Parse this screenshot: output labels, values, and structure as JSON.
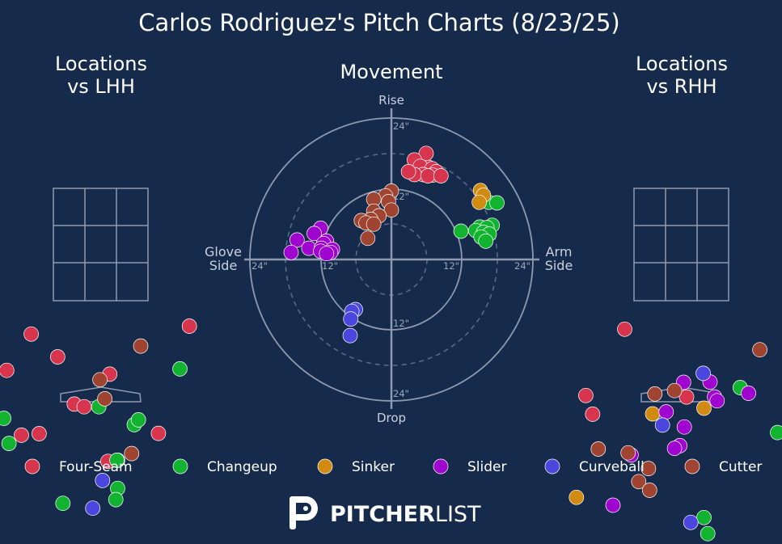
{
  "chart_data": {
    "title": "Carlos Rodriguez's Pitch Charts (8/23/25)",
    "legend": {
      "placement": "bottom",
      "entries": [
        {
          "key": "four_seam",
          "label": "Four-Seam",
          "color": "#d7344e"
        },
        {
          "key": "changeup",
          "label": "Changeup",
          "color": "#12b330"
        },
        {
          "key": "sinker",
          "label": "Sinker",
          "color": "#d18a12"
        },
        {
          "key": "slider",
          "label": "Slider",
          "color": "#a004cf"
        },
        {
          "key": "curveball",
          "label": "Curveball",
          "color": "#4a46de"
        },
        {
          "key": "cutter",
          "label": "Cutter",
          "color": "#9e4430"
        }
      ]
    },
    "charts": [
      {
        "type": "scatter",
        "title_line1": "Locations",
        "title_line2": "vs LHH",
        "points": [
          {
            "pitch": "four_seam",
            "x": -1.84,
            "y": 4.03
          },
          {
            "pitch": "four_seam",
            "x": 2.35,
            "y": 4.24
          },
          {
            "pitch": "four_seam",
            "x": -1.14,
            "y": 3.42
          },
          {
            "pitch": "four_seam",
            "x": -2.49,
            "y": 3.06
          },
          {
            "pitch": "four_seam",
            "x": 0.24,
            "y": 2.96
          },
          {
            "pitch": "four_seam",
            "x": -0.7,
            "y": 2.16
          },
          {
            "pitch": "four_seam",
            "x": -0.44,
            "y": 2.09
          },
          {
            "pitch": "four_seam",
            "x": -2.1,
            "y": 1.33
          },
          {
            "pitch": "four_seam",
            "x": -1.63,
            "y": 1.37
          },
          {
            "pitch": "four_seam",
            "x": 1.53,
            "y": 1.38
          },
          {
            "pitch": "four_seam",
            "x": 0.19,
            "y": 0.63
          },
          {
            "pitch": "four_seam",
            "x": 0.45,
            "y": 0.66
          },
          {
            "pitch": "changeup",
            "x": 2.1,
            "y": 3.1
          },
          {
            "pitch": "changeup",
            "x": -0.05,
            "y": 2.09
          },
          {
            "pitch": "changeup",
            "x": -2.57,
            "y": 1.78
          },
          {
            "pitch": "changeup",
            "x": 0.89,
            "y": 1.61
          },
          {
            "pitch": "changeup",
            "x": 1.0,
            "y": 1.74
          },
          {
            "pitch": "changeup",
            "x": -2.43,
            "y": 1.11
          },
          {
            "pitch": "changeup",
            "x": 0.43,
            "y": 0.66
          },
          {
            "pitch": "changeup",
            "x": 0.45,
            "y": -0.09
          },
          {
            "pitch": "changeup",
            "x": -1.0,
            "y": -0.49
          },
          {
            "pitch": "changeup",
            "x": 0.4,
            "y": -0.39
          },
          {
            "pitch": "curveball",
            "x": 0.05,
            "y": 0.12
          },
          {
            "pitch": "curveball",
            "x": -0.21,
            "y": -0.62
          },
          {
            "pitch": "cutter",
            "x": 1.06,
            "y": 3.71
          },
          {
            "pitch": "cutter",
            "x": -0.02,
            "y": 2.81
          },
          {
            "pitch": "cutter",
            "x": 0.11,
            "y": 2.3
          },
          {
            "pitch": "cutter",
            "x": 0.82,
            "y": 0.84
          },
          {
            "pitch": "cutter",
            "x": -3.18,
            "y": -0.47
          }
        ]
      },
      {
        "type": "scatter",
        "title": "Movement",
        "axis_top": "Rise",
        "axis_bottom": "Drop",
        "axis_left_line1": "Glove",
        "axis_left_line2": "Side",
        "axis_right_line1": "Arm",
        "axis_right_line2": "Side",
        "ring_labels": [
          "12\"",
          "24\""
        ],
        "x_range": [
          -24,
          24
        ],
        "y_range": [
          -24,
          24
        ],
        "points": [
          {
            "pitch": "four_seam",
            "x": 5.9,
            "y": 18.0
          },
          {
            "pitch": "four_seam",
            "x": 3.9,
            "y": 16.9
          },
          {
            "pitch": "four_seam",
            "x": 6.4,
            "y": 15.6
          },
          {
            "pitch": "four_seam",
            "x": 4.9,
            "y": 15.8
          },
          {
            "pitch": "four_seam",
            "x": 6.9,
            "y": 15.4
          },
          {
            "pitch": "four_seam",
            "x": 7.6,
            "y": 14.9
          },
          {
            "pitch": "four_seam",
            "x": 5.4,
            "y": 14.4
          },
          {
            "pitch": "four_seam",
            "x": 7.0,
            "y": 14.3
          },
          {
            "pitch": "four_seam",
            "x": 3.9,
            "y": 14.4
          },
          {
            "pitch": "four_seam",
            "x": 6.2,
            "y": 14.2
          },
          {
            "pitch": "four_seam",
            "x": 8.4,
            "y": 14.2
          },
          {
            "pitch": "four_seam",
            "x": 2.9,
            "y": 14.9
          },
          {
            "pitch": "changeup",
            "x": 16.5,
            "y": 9.7
          },
          {
            "pitch": "changeup",
            "x": 17.9,
            "y": 9.6
          },
          {
            "pitch": "changeup",
            "x": 15.0,
            "y": 5.5
          },
          {
            "pitch": "changeup",
            "x": 17.1,
            "y": 5.8
          },
          {
            "pitch": "changeup",
            "x": 16.2,
            "y": 5.4
          },
          {
            "pitch": "changeup",
            "x": 14.3,
            "y": 4.9
          },
          {
            "pitch": "changeup",
            "x": 15.6,
            "y": 4.6
          },
          {
            "pitch": "changeup",
            "x": 16.6,
            "y": 4.3
          },
          {
            "pitch": "changeup",
            "x": 11.8,
            "y": 4.8
          },
          {
            "pitch": "changeup",
            "x": 15.2,
            "y": 3.8
          },
          {
            "pitch": "changeup",
            "x": 16.0,
            "y": 3.1
          },
          {
            "pitch": "sinker",
            "x": 15.1,
            "y": 11.7
          },
          {
            "pitch": "sinker",
            "x": 15.6,
            "y": 10.9
          },
          {
            "pitch": "sinker",
            "x": 14.9,
            "y": 9.7
          },
          {
            "pitch": "slider",
            "x": -12.0,
            "y": 5.3
          },
          {
            "pitch": "slider",
            "x": -13.1,
            "y": 4.4
          },
          {
            "pitch": "slider",
            "x": -16.0,
            "y": 3.3
          },
          {
            "pitch": "slider",
            "x": -11.0,
            "y": 3.1
          },
          {
            "pitch": "slider",
            "x": -11.5,
            "y": 2.7
          },
          {
            "pitch": "slider",
            "x": -14.0,
            "y": 1.9
          },
          {
            "pitch": "slider",
            "x": -11.9,
            "y": 1.9
          },
          {
            "pitch": "slider",
            "x": -10.0,
            "y": 1.7
          },
          {
            "pitch": "slider",
            "x": -12.0,
            "y": 1.4
          },
          {
            "pitch": "slider",
            "x": -10.3,
            "y": 1.2
          },
          {
            "pitch": "slider",
            "x": -17.0,
            "y": 1.2
          },
          {
            "pitch": "slider",
            "x": -11.0,
            "y": 1.0
          },
          {
            "pitch": "curveball",
            "x": -6.1,
            "y": -8.5
          },
          {
            "pitch": "curveball",
            "x": -6.7,
            "y": -8.8
          },
          {
            "pitch": "curveball",
            "x": -6.9,
            "y": -10.1
          },
          {
            "pitch": "curveball",
            "x": -7.0,
            "y": -12.9
          },
          {
            "pitch": "cutter",
            "x": 0.0,
            "y": 11.6
          },
          {
            "pitch": "cutter",
            "x": -1.0,
            "y": 10.8
          },
          {
            "pitch": "cutter",
            "x": -3.0,
            "y": 10.2
          },
          {
            "pitch": "cutter",
            "x": -0.5,
            "y": 9.8
          },
          {
            "pitch": "cutter",
            "x": -3.0,
            "y": 8.2
          },
          {
            "pitch": "cutter",
            "x": 0.0,
            "y": 8.4
          },
          {
            "pitch": "cutter",
            "x": -2.1,
            "y": 7.4
          },
          {
            "pitch": "cutter",
            "x": -3.5,
            "y": 6.8
          },
          {
            "pitch": "cutter",
            "x": -5.1,
            "y": 6.6
          },
          {
            "pitch": "cutter",
            "x": -4.3,
            "y": 6.2
          },
          {
            "pitch": "cutter",
            "x": -3.0,
            "y": 6.0
          },
          {
            "pitch": "cutter",
            "x": -4.0,
            "y": 3.6
          }
        ]
      },
      {
        "type": "scatter",
        "title_line1": "Locations",
        "title_line2": "vs RHH",
        "points": [
          {
            "pitch": "four_seam",
            "x": -1.5,
            "y": 4.16
          },
          {
            "pitch": "four_seam",
            "x": -2.53,
            "y": 2.39
          },
          {
            "pitch": "four_seam",
            "x": -2.35,
            "y": 1.89
          },
          {
            "pitch": "four_seam",
            "x": 0.14,
            "y": 2.35
          },
          {
            "pitch": "changeup",
            "x": 1.56,
            "y": 2.6
          },
          {
            "pitch": "changeup",
            "x": 2.55,
            "y": 1.4
          },
          {
            "pitch": "changeup",
            "x": 0.6,
            "y": -0.87
          },
          {
            "pitch": "changeup",
            "x": 0.7,
            "y": -1.3
          },
          {
            "pitch": "sinker",
            "x": -0.76,
            "y": 1.9
          },
          {
            "pitch": "sinker",
            "x": 0.6,
            "y": 2.05
          },
          {
            "pitch": "sinker",
            "x": 3.34,
            "y": 2.22
          },
          {
            "pitch": "sinker",
            "x": 3.3,
            "y": 0.1
          },
          {
            "pitch": "sinker",
            "x": -2.78,
            "y": -0.33
          },
          {
            "pitch": "slider",
            "x": 0.06,
            "y": 2.74
          },
          {
            "pitch": "slider",
            "x": 0.76,
            "y": 2.75
          },
          {
            "pitch": "slider",
            "x": 1.78,
            "y": 2.45
          },
          {
            "pitch": "slider",
            "x": 0.88,
            "y": 2.35
          },
          {
            "pitch": "slider",
            "x": 0.95,
            "y": 2.25
          },
          {
            "pitch": "slider",
            "x": -0.4,
            "y": 1.95
          },
          {
            "pitch": "slider",
            "x": 0.08,
            "y": 1.55
          },
          {
            "pitch": "slider",
            "x": -0.04,
            "y": 1.05
          },
          {
            "pitch": "slider",
            "x": -0.18,
            "y": 0.98
          },
          {
            "pitch": "slider",
            "x": -1.33,
            "y": 0.8
          },
          {
            "pitch": "slider",
            "x": -1.81,
            "y": -0.54
          },
          {
            "pitch": "curveball",
            "x": 0.58,
            "y": 2.98
          },
          {
            "pitch": "curveball",
            "x": -0.5,
            "y": 1.6
          },
          {
            "pitch": "curveball",
            "x": 0.25,
            "y": -1.0
          },
          {
            "pitch": "cutter",
            "x": 2.08,
            "y": 3.61
          },
          {
            "pitch": "cutter",
            "x": -0.18,
            "y": 2.52
          },
          {
            "pitch": "cutter",
            "x": -0.7,
            "y": 2.43
          },
          {
            "pitch": "cutter",
            "x": -2.2,
            "y": 0.96
          },
          {
            "pitch": "cutter",
            "x": -1.41,
            "y": 0.86
          },
          {
            "pitch": "cutter",
            "x": -0.87,
            "y": 0.44
          },
          {
            "pitch": "cutter",
            "x": -1.13,
            "y": 0.09
          },
          {
            "pitch": "cutter",
            "x": -0.84,
            "y": -0.14
          }
        ]
      }
    ]
  },
  "logo": {
    "brand_bold": "PITCHER",
    "brand_light": "LIST"
  }
}
